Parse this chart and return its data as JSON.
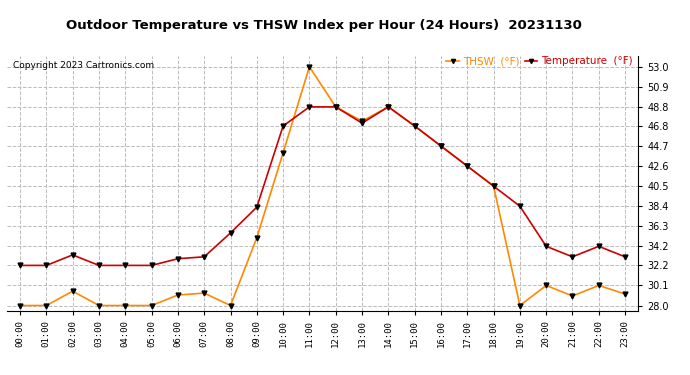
{
  "title": "Outdoor Temperature vs THSW Index per Hour (24 Hours)  20231130",
  "copyright": "Copyright 2023 Cartronics.com",
  "x_labels": [
    "00:00",
    "01:00",
    "02:00",
    "03:00",
    "04:00",
    "05:00",
    "06:00",
    "07:00",
    "08:00",
    "09:00",
    "10:00",
    "11:00",
    "12:00",
    "13:00",
    "14:00",
    "15:00",
    "16:00",
    "17:00",
    "18:00",
    "19:00",
    "20:00",
    "21:00",
    "22:00",
    "23:00"
  ],
  "temperature": [
    32.2,
    32.2,
    33.3,
    32.2,
    32.2,
    32.2,
    32.9,
    33.1,
    35.6,
    38.3,
    46.8,
    48.8,
    48.8,
    47.1,
    48.8,
    46.8,
    44.7,
    42.6,
    40.5,
    38.4,
    34.2,
    33.1,
    34.2,
    33.1
  ],
  "thsw": [
    28.0,
    28.0,
    29.5,
    28.0,
    28.0,
    28.0,
    29.1,
    29.3,
    28.0,
    35.1,
    44.0,
    53.0,
    48.8,
    47.3,
    48.8,
    46.8,
    44.7,
    42.6,
    40.5,
    28.0,
    30.1,
    29.0,
    30.1,
    29.2
  ],
  "temp_color": "#cc0000",
  "thsw_color": "#ff8800",
  "marker_color": "#000000",
  "bg_color": "#ffffff",
  "grid_color": "#bbbbbb",
  "ylim_min": 27.4,
  "ylim_max": 54.1,
  "yticks": [
    28.0,
    30.1,
    32.2,
    34.2,
    36.3,
    38.4,
    40.5,
    42.6,
    44.7,
    46.8,
    48.8,
    50.9,
    53.0
  ],
  "legend_thsw": "THSW  (°F)",
  "legend_temp": "Temperature  (°F)"
}
